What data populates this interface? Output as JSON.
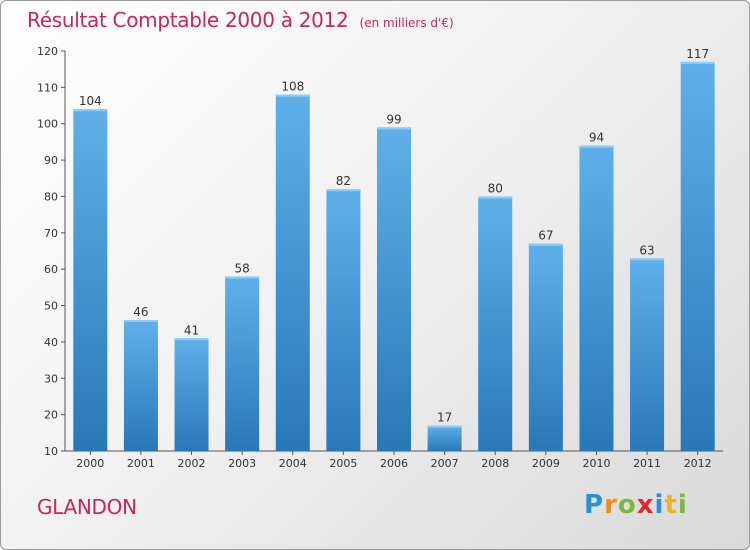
{
  "title": "Résultat Comptable 2000 à 2012",
  "subtitle": "(en milliers d'€)",
  "commune": "GLANDON",
  "logo": {
    "letters": [
      {
        "ch": "P",
        "color": "#2a8fd4"
      },
      {
        "ch": "r",
        "color": "#f08c1c"
      },
      {
        "ch": "o",
        "color": "#7cb83a"
      },
      {
        "ch": "x",
        "color": "#e02a2a"
      },
      {
        "ch": "i",
        "color": "#2a8fd4"
      },
      {
        "ch": "t",
        "color": "#f0b41c"
      },
      {
        "ch": "i",
        "color": "#7cb83a"
      }
    ]
  },
  "colors": {
    "title": "#c8255b",
    "bar_light": "#5fb0ea",
    "bar_dark": "#2a77b8"
  },
  "chart_data": {
    "type": "bar",
    "title": "Résultat Comptable 2000 à 2012",
    "xlabel": "",
    "ylabel": "(en milliers d'€)",
    "categories": [
      "2000",
      "2001",
      "2002",
      "2003",
      "2004",
      "2005",
      "2006",
      "2007",
      "2008",
      "2009",
      "2010",
      "2011",
      "2012"
    ],
    "values": [
      104,
      46,
      41,
      58,
      108,
      82,
      99,
      17,
      80,
      67,
      94,
      63,
      117
    ],
    "ylim": [
      10,
      120
    ],
    "yticks": [
      10,
      20,
      30,
      40,
      50,
      60,
      70,
      80,
      90,
      100,
      110,
      120
    ],
    "grid": false,
    "legend": "none"
  }
}
